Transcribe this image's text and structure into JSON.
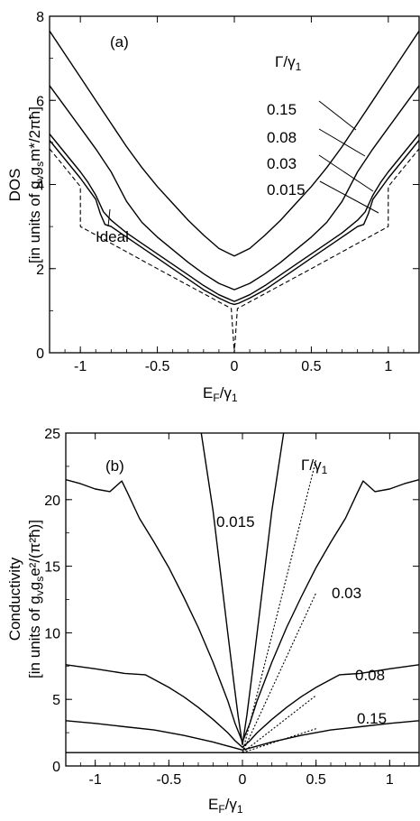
{
  "chart_data": [
    {
      "type": "line",
      "panel_label": "(a)",
      "xlabel": "E_F/γ_1",
      "ylabel_line1": "DOS",
      "ylabel_line2": "[in units of g_v g_s m*/2πħ]",
      "xlim": [
        -1.2,
        1.2
      ],
      "ylim": [
        0,
        8
      ],
      "xticks": [
        -1,
        -0.5,
        0,
        0.5,
        1
      ],
      "xtick_labels": [
        "-1",
        "-0.5",
        "0",
        "0.5",
        "1"
      ],
      "yticks": [
        0,
        2,
        4,
        6,
        8
      ],
      "ytick_labels": [
        "0",
        "2",
        "4",
        "6",
        "8"
      ],
      "legend_header": "Γ/γ_1",
      "curve_labels": [
        "0.15",
        "0.08",
        "0.03",
        "0.015"
      ],
      "ideal_label": "Ideal",
      "series": [
        {
          "name": "0.15",
          "style": "solid",
          "points": [
            [
              -1.2,
              7.65
            ],
            [
              -1.1,
              7.1
            ],
            [
              -1.0,
              6.55
            ],
            [
              -0.9,
              6.0
            ],
            [
              -0.8,
              5.45
            ],
            [
              -0.7,
              4.9
            ],
            [
              -0.6,
              4.4
            ],
            [
              -0.5,
              3.95
            ],
            [
              -0.4,
              3.55
            ],
            [
              -0.3,
              3.15
            ],
            [
              -0.2,
              2.8
            ],
            [
              -0.1,
              2.48
            ],
            [
              0,
              2.3
            ],
            [
              0.1,
              2.48
            ],
            [
              0.2,
              2.8
            ],
            [
              0.3,
              3.15
            ],
            [
              0.4,
              3.55
            ],
            [
              0.5,
              3.95
            ],
            [
              0.6,
              4.4
            ],
            [
              0.7,
              4.9
            ],
            [
              0.8,
              5.45
            ],
            [
              0.9,
              6.0
            ],
            [
              1.0,
              6.55
            ],
            [
              1.1,
              7.1
            ],
            [
              1.2,
              7.65
            ]
          ]
        },
        {
          "name": "0.08",
          "style": "solid",
          "points": [
            [
              -1.2,
              6.35
            ],
            [
              -1.1,
              5.85
            ],
            [
              -1.0,
              5.35
            ],
            [
              -0.9,
              4.85
            ],
            [
              -0.8,
              4.3
            ],
            [
              -0.7,
              3.6
            ],
            [
              -0.6,
              3.1
            ],
            [
              -0.5,
              2.75
            ],
            [
              -0.4,
              2.45
            ],
            [
              -0.3,
              2.15
            ],
            [
              -0.2,
              1.88
            ],
            [
              -0.1,
              1.65
            ],
            [
              0,
              1.5
            ],
            [
              0.1,
              1.65
            ],
            [
              0.2,
              1.88
            ],
            [
              0.3,
              2.15
            ],
            [
              0.4,
              2.45
            ],
            [
              0.5,
              2.75
            ],
            [
              0.6,
              3.1
            ],
            [
              0.7,
              3.6
            ],
            [
              0.8,
              4.3
            ],
            [
              0.9,
              4.85
            ],
            [
              1.0,
              5.35
            ],
            [
              1.1,
              5.85
            ],
            [
              1.2,
              6.35
            ]
          ]
        },
        {
          "name": "0.03",
          "style": "solid",
          "points": [
            [
              -1.2,
              5.2
            ],
            [
              -1.1,
              4.75
            ],
            [
              -1.0,
              4.3
            ],
            [
              -0.95,
              4.05
            ],
            [
              -0.9,
              3.75
            ],
            [
              -0.85,
              3.35
            ],
            [
              -0.8,
              3.15
            ],
            [
              -0.7,
              2.85
            ],
            [
              -0.6,
              2.6
            ],
            [
              -0.5,
              2.35
            ],
            [
              -0.4,
              2.1
            ],
            [
              -0.3,
              1.85
            ],
            [
              -0.2,
              1.6
            ],
            [
              -0.1,
              1.38
            ],
            [
              0,
              1.22
            ],
            [
              0.1,
              1.38
            ],
            [
              0.2,
              1.6
            ],
            [
              0.3,
              1.85
            ],
            [
              0.4,
              2.1
            ],
            [
              0.5,
              2.35
            ],
            [
              0.6,
              2.6
            ],
            [
              0.7,
              2.85
            ],
            [
              0.8,
              3.15
            ],
            [
              0.85,
              3.35
            ],
            [
              0.9,
              3.75
            ],
            [
              0.95,
              4.05
            ],
            [
              1.0,
              4.3
            ],
            [
              1.1,
              4.75
            ],
            [
              1.2,
              5.2
            ]
          ]
        },
        {
          "name": "0.015",
          "style": "solid",
          "points": [
            [
              -1.2,
              5.05
            ],
            [
              -1.1,
              4.6
            ],
            [
              -1.0,
              4.15
            ],
            [
              -0.95,
              3.9
            ],
            [
              -0.9,
              3.65
            ],
            [
              -0.87,
              3.3
            ],
            [
              -0.84,
              3.05
            ],
            [
              -0.8,
              3.0
            ],
            [
              -0.7,
              2.75
            ],
            [
              -0.6,
              2.5
            ],
            [
              -0.5,
              2.25
            ],
            [
              -0.4,
              2.0
            ],
            [
              -0.3,
              1.75
            ],
            [
              -0.2,
              1.5
            ],
            [
              -0.1,
              1.3
            ],
            [
              -0.03,
              1.18
            ],
            [
              0,
              1.15
            ],
            [
              0.03,
              1.18
            ],
            [
              0.1,
              1.3
            ],
            [
              0.2,
              1.5
            ],
            [
              0.3,
              1.75
            ],
            [
              0.4,
              2.0
            ],
            [
              0.5,
              2.25
            ],
            [
              0.6,
              2.5
            ],
            [
              0.7,
              2.75
            ],
            [
              0.8,
              3.0
            ],
            [
              0.84,
              3.05
            ],
            [
              0.87,
              3.3
            ],
            [
              0.9,
              3.65
            ],
            [
              0.95,
              3.9
            ],
            [
              1.0,
              4.15
            ],
            [
              1.1,
              4.6
            ],
            [
              1.2,
              5.05
            ]
          ]
        },
        {
          "name": "Ideal",
          "style": "dashed",
          "points": [
            [
              -1.2,
              4.85
            ],
            [
              -1.1,
              4.4
            ],
            [
              -1.0,
              3.95
            ],
            [
              -1.0,
              3.0
            ],
            [
              -0.5,
              2.0
            ],
            [
              -0.02,
              1.05
            ],
            [
              0,
              0
            ],
            [
              0.02,
              1.05
            ],
            [
              0.5,
              2.0
            ],
            [
              1.0,
              3.0
            ],
            [
              1.0,
              3.95
            ],
            [
              1.1,
              4.4
            ],
            [
              1.2,
              4.85
            ]
          ]
        }
      ]
    },
    {
      "type": "line",
      "panel_label": "(b)",
      "xlabel": "E_F/γ_1",
      "ylabel_line1": "Conductivity",
      "ylabel_line2": "[in units of g_v g_s e²/(π²ħ)]",
      "xlim": [
        -1.2,
        1.2
      ],
      "ylim": [
        0,
        25
      ],
      "xticks": [
        -1,
        -0.5,
        0,
        0.5,
        1
      ],
      "xtick_labels": [
        "-1",
        "-0.5",
        "0",
        "0.5",
        "1"
      ],
      "yticks": [
        0,
        5,
        10,
        15,
        20,
        25
      ],
      "ytick_labels": [
        "0",
        "5",
        "10",
        "15",
        "20",
        "25"
      ],
      "legend_header": "Γ/γ_1",
      "curve_labels": [
        "0.015",
        "0.03",
        "0.08",
        "0.15"
      ],
      "series": [
        {
          "name": "0.015",
          "style": "solid",
          "points": [
            [
              -0.28,
              25
            ],
            [
              -0.2,
              19.2
            ],
            [
              -0.15,
              14.6
            ],
            [
              -0.1,
              10.0
            ],
            [
              -0.06,
              6.4
            ],
            [
              -0.03,
              3.8
            ],
            [
              0,
              1.6
            ],
            [
              0.03,
              3.8
            ],
            [
              0.06,
              6.4
            ],
            [
              0.1,
              10.0
            ],
            [
              0.15,
              14.6
            ],
            [
              0.2,
              19.2
            ],
            [
              0.28,
              25
            ]
          ]
        },
        {
          "name": "0.03",
          "style": "solid",
          "points": [
            [
              -1.2,
              21.5
            ],
            [
              -1.1,
              21.2
            ],
            [
              -1.0,
              20.8
            ],
            [
              -0.9,
              20.6
            ],
            [
              -0.82,
              21.4
            ],
            [
              -0.78,
              20.5
            ],
            [
              -0.7,
              18.6
            ],
            [
              -0.6,
              16.8
            ],
            [
              -0.5,
              14.9
            ],
            [
              -0.4,
              12.7
            ],
            [
              -0.3,
              10.4
            ],
            [
              -0.2,
              7.8
            ],
            [
              -0.1,
              4.9
            ],
            [
              -0.05,
              3.2
            ],
            [
              0,
              1.8
            ],
            [
              0.05,
              3.2
            ],
            [
              0.1,
              4.9
            ],
            [
              0.2,
              7.8
            ],
            [
              0.3,
              10.4
            ],
            [
              0.4,
              12.7
            ],
            [
              0.5,
              14.9
            ],
            [
              0.6,
              16.8
            ],
            [
              0.7,
              18.6
            ],
            [
              0.78,
              20.5
            ],
            [
              0.82,
              21.4
            ],
            [
              0.9,
              20.6
            ],
            [
              1.0,
              20.8
            ],
            [
              1.1,
              21.2
            ],
            [
              1.2,
              21.5
            ]
          ]
        },
        {
          "name": "0.08",
          "style": "solid",
          "points": [
            [
              -1.2,
              7.6
            ],
            [
              -1.0,
              7.3
            ],
            [
              -0.8,
              6.95
            ],
            [
              -0.66,
              6.85
            ],
            [
              -0.6,
              6.5
            ],
            [
              -0.5,
              5.9
            ],
            [
              -0.4,
              5.2
            ],
            [
              -0.3,
              4.4
            ],
            [
              -0.2,
              3.5
            ],
            [
              -0.1,
              2.5
            ],
            [
              -0.05,
              1.9
            ],
            [
              0,
              1.4
            ],
            [
              0.05,
              1.9
            ],
            [
              0.1,
              2.5
            ],
            [
              0.2,
              3.5
            ],
            [
              0.3,
              4.4
            ],
            [
              0.4,
              5.2
            ],
            [
              0.5,
              5.9
            ],
            [
              0.6,
              6.5
            ],
            [
              0.66,
              6.85
            ],
            [
              0.8,
              6.95
            ],
            [
              1.0,
              7.3
            ],
            [
              1.2,
              7.6
            ]
          ]
        },
        {
          "name": "0.15",
          "style": "solid",
          "points": [
            [
              -1.2,
              3.4
            ],
            [
              -1.0,
              3.2
            ],
            [
              -0.8,
              2.95
            ],
            [
              -0.6,
              2.7
            ],
            [
              -0.4,
              2.3
            ],
            [
              -0.2,
              1.8
            ],
            [
              -0.1,
              1.5
            ],
            [
              0,
              1.2
            ],
            [
              0.1,
              1.5
            ],
            [
              0.2,
              1.8
            ],
            [
              0.4,
              2.3
            ],
            [
              0.6,
              2.7
            ],
            [
              0.8,
              2.95
            ],
            [
              1.0,
              3.2
            ],
            [
              1.2,
              3.4
            ]
          ]
        },
        {
          "name": "baseline",
          "style": "solid",
          "points": [
            [
              -1.2,
              1.0
            ],
            [
              1.2,
              1.0
            ]
          ]
        },
        {
          "name": "dotted-0.015",
          "style": "dotted",
          "points": [
            [
              0,
              1.0
            ],
            [
              0.5,
              23.0
            ]
          ]
        },
        {
          "name": "dotted-0.03",
          "style": "dotted",
          "points": [
            [
              0,
              1.0
            ],
            [
              0.5,
              13.0
            ]
          ]
        },
        {
          "name": "dotted-0.08",
          "style": "dotted",
          "points": [
            [
              0,
              1.0
            ],
            [
              0.5,
              5.3
            ]
          ]
        },
        {
          "name": "dotted-0.15",
          "style": "dotted",
          "points": [
            [
              0,
              1.0
            ],
            [
              0.5,
              2.8
            ]
          ]
        }
      ]
    }
  ]
}
